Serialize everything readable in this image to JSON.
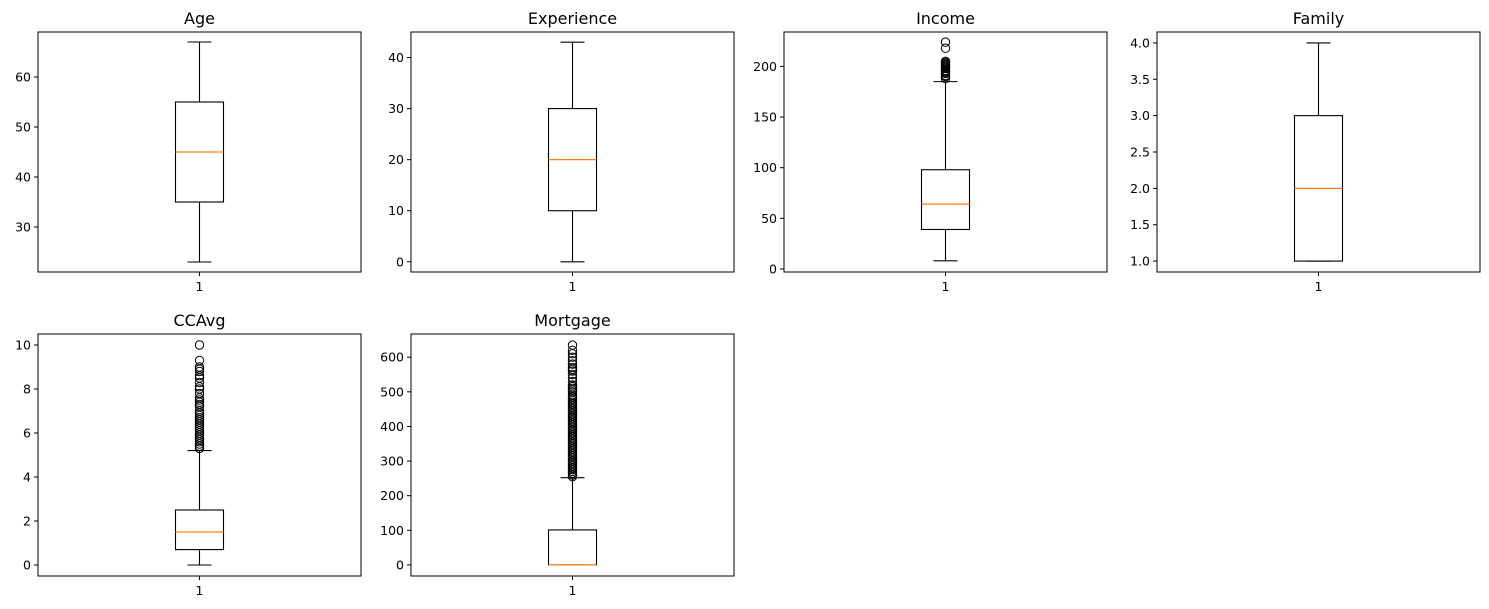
{
  "chart_data": [
    {
      "type": "box",
      "title": "Age",
      "categories": [
        "1"
      ],
      "ylim": [
        21,
        69
      ],
      "yticks": [
        30,
        40,
        50,
        60
      ],
      "box": {
        "whisker_low": 23,
        "q1": 35,
        "median": 45,
        "q3": 55,
        "whisker_high": 67
      },
      "outliers": []
    },
    {
      "type": "box",
      "title": "Experience",
      "categories": [
        "1"
      ],
      "ylim": [
        -2,
        45
      ],
      "yticks": [
        0,
        10,
        20,
        30,
        40
      ],
      "box": {
        "whisker_low": 0,
        "q1": 10,
        "median": 20,
        "q3": 30,
        "whisker_high": 43
      },
      "outliers": []
    },
    {
      "type": "box",
      "title": "Income",
      "categories": [
        "1"
      ],
      "ylim": [
        -3,
        234
      ],
      "yticks": [
        0,
        50,
        100,
        150,
        200
      ],
      "box": {
        "whisker_low": 8,
        "q1": 39,
        "median": 64,
        "q3": 98,
        "whisker_high": 185
      },
      "outliers": [
        188,
        190,
        191,
        193,
        194,
        195,
        196,
        198,
        199,
        200,
        201,
        202,
        203,
        204,
        205,
        218,
        224
      ]
    },
    {
      "type": "box",
      "title": "Family",
      "categories": [
        "1"
      ],
      "ylim": [
        0.85,
        4.15
      ],
      "yticks": [
        1.0,
        1.5,
        2.0,
        2.5,
        3.0,
        3.5,
        4.0
      ],
      "ytick_labels": [
        "1.0",
        "1.5",
        "2.0",
        "2.5",
        "3.0",
        "3.5",
        "4.0"
      ],
      "box": {
        "whisker_low": 1,
        "q1": 1,
        "median": 2,
        "q3": 3,
        "whisker_high": 4
      },
      "outliers": []
    },
    {
      "type": "box",
      "title": "CCAvg",
      "categories": [
        "1"
      ],
      "ylim": [
        -0.5,
        10.5
      ],
      "yticks": [
        0,
        2,
        4,
        6,
        8,
        10
      ],
      "box": {
        "whisker_low": 0,
        "q1": 0.7,
        "median": 1.5,
        "q3": 2.5,
        "whisker_high": 5.2
      },
      "outliers": [
        5.3,
        5.4,
        5.5,
        5.6,
        5.7,
        5.8,
        5.9,
        6.0,
        6.1,
        6.2,
        6.3,
        6.4,
        6.5,
        6.6,
        6.7,
        6.8,
        6.9,
        7.0,
        7.2,
        7.3,
        7.4,
        7.5,
        7.6,
        7.8,
        8.0,
        8.1,
        8.3,
        8.5,
        8.6,
        8.8,
        8.9,
        9.0,
        9.3,
        10.0
      ]
    },
    {
      "type": "box",
      "title": "Mortgage",
      "categories": [
        "1"
      ],
      "ylim": [
        -32,
        667
      ],
      "yticks": [
        0,
        100,
        200,
        300,
        400,
        500,
        600
      ],
      "box": {
        "whisker_low": 0,
        "q1": 0,
        "median": 0,
        "q3": 101,
        "whisker_high": 252
      },
      "outliers": [
        255,
        260,
        265,
        270,
        275,
        280,
        285,
        290,
        295,
        300,
        305,
        310,
        315,
        320,
        325,
        330,
        335,
        340,
        345,
        350,
        355,
        360,
        365,
        370,
        375,
        380,
        385,
        390,
        395,
        400,
        405,
        410,
        415,
        420,
        425,
        430,
        435,
        440,
        445,
        450,
        455,
        460,
        465,
        470,
        475,
        480,
        485,
        490,
        500,
        505,
        510,
        515,
        520,
        530,
        540,
        550,
        560,
        565,
        570,
        580,
        590,
        600,
        610,
        620,
        635
      ]
    }
  ]
}
